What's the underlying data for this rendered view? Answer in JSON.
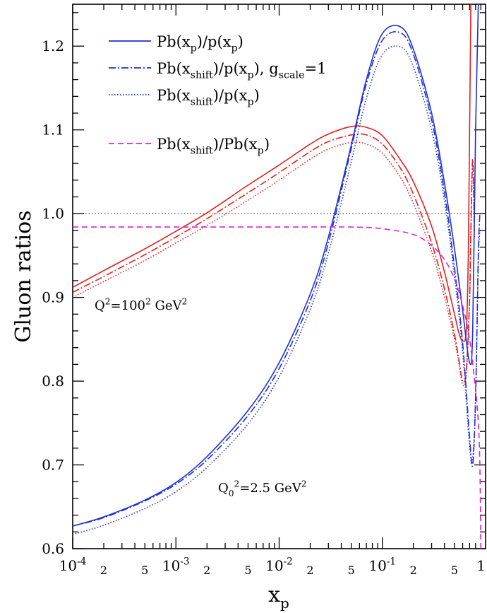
{
  "chart_data": {
    "type": "line",
    "x_scale": "log",
    "xlim": [
      0.0001,
      1
    ],
    "ylim": [
      0.6,
      1.25
    ],
    "xlabel": "x_p",
    "ylabel": "Gluon ratios",
    "x_ticks": [
      {
        "value": 0.0001,
        "base": "10",
        "exp": "-4"
      },
      {
        "value": 0.001,
        "base": "10",
        "exp": "-3"
      },
      {
        "value": 0.01,
        "base": "10",
        "exp": "-2"
      },
      {
        "value": 0.1,
        "base": "10",
        "exp": "-1"
      },
      {
        "value": 1,
        "base": "1",
        "exp": ""
      }
    ],
    "x_minor_labels": [
      {
        "value": 0.0002,
        "label": "2"
      },
      {
        "value": 0.0005,
        "label": "5"
      },
      {
        "value": 0.002,
        "label": "2"
      },
      {
        "value": 0.005,
        "label": "5"
      },
      {
        "value": 0.02,
        "label": "2"
      },
      {
        "value": 0.05,
        "label": "5"
      },
      {
        "value": 0.2,
        "label": "2"
      },
      {
        "value": 0.5,
        "label": "5"
      }
    ],
    "y_ticks": [
      {
        "value": 0.6,
        "label": "0.6"
      },
      {
        "value": 0.7,
        "label": "0.7"
      },
      {
        "value": 0.8,
        "label": "0.8"
      },
      {
        "value": 0.9,
        "label": "0.9"
      },
      {
        "value": 1.0,
        "label": "1.0"
      },
      {
        "value": 1.1,
        "label": "1.1"
      },
      {
        "value": 1.2,
        "label": "1.2"
      }
    ],
    "reference_line": {
      "y": 1.0,
      "style": "dotted",
      "color": "#555555"
    },
    "legend": {
      "placement": "top-right",
      "entries": [
        {
          "style": "solid",
          "color": "#1f2fd6",
          "parts": [
            {
              "t": "Pb(x"
            },
            {
              "t": "p",
              "s": "sub"
            },
            {
              "t": ")/p(x"
            },
            {
              "t": "p",
              "s": "sub"
            },
            {
              "t": ")"
            }
          ]
        },
        {
          "style": "dashdot",
          "color": "#1f2fd6",
          "parts": [
            {
              "t": "Pb(x"
            },
            {
              "t": "shift",
              "s": "sub"
            },
            {
              "t": ")/p(x"
            },
            {
              "t": "p",
              "s": "sub"
            },
            {
              "t": "), g"
            },
            {
              "t": "scale",
              "s": "sub"
            },
            {
              "t": "=1"
            }
          ]
        },
        {
          "style": "dotted",
          "color": "#1f2fd6",
          "parts": [
            {
              "t": "Pb(x"
            },
            {
              "t": "shift",
              "s": "sub"
            },
            {
              "t": ")/p(x"
            },
            {
              "t": "p",
              "s": "sub"
            },
            {
              "t": ")"
            }
          ]
        },
        {
          "style": "dashed",
          "color": "#e020d0",
          "parts": [
            {
              "t": "Pb(x"
            },
            {
              "t": "shift",
              "s": "sub"
            },
            {
              "t": ")/Pb(x"
            },
            {
              "t": "p",
              "s": "sub"
            },
            {
              "t": ")"
            }
          ]
        }
      ]
    },
    "annotations": [
      {
        "id": "q2-high",
        "parts": [
          {
            "t": "Q"
          },
          {
            "t": "2",
            "s": "sup"
          },
          {
            "t": "=100"
          },
          {
            "t": "2",
            "s": "sup"
          },
          {
            "t": " GeV"
          },
          {
            "t": "2",
            "s": "sup"
          }
        ]
      },
      {
        "id": "q0",
        "parts": [
          {
            "t": "Q"
          },
          {
            "t": "0",
            "s": "sub"
          },
          {
            "t": "2",
            "s": "sup"
          },
          {
            "t": "=2.5 GeV"
          },
          {
            "t": "2",
            "s": "sup"
          }
        ]
      }
    ],
    "series": [
      {
        "color": "#e02020",
        "style": "solid",
        "x": [
          0.0001,
          0.0002,
          0.0005,
          0.001,
          0.002,
          0.005,
          0.01,
          0.02,
          0.03,
          0.05,
          0.07,
          0.1,
          0.15,
          0.2,
          0.3,
          0.4,
          0.5,
          0.55,
          0.6,
          0.65,
          0.68,
          0.7,
          0.72
        ],
        "y": [
          0.912,
          0.932,
          0.958,
          0.979,
          1.001,
          1.034,
          1.058,
          1.083,
          1.095,
          1.104,
          1.103,
          1.093,
          1.064,
          1.038,
          0.985,
          0.93,
          0.88,
          0.858,
          0.848,
          0.86,
          0.95,
          1.1,
          1.25
        ]
      },
      {
        "color": "#e02020",
        "style": "dashdot",
        "x": [
          0.0001,
          0.0002,
          0.0005,
          0.001,
          0.002,
          0.005,
          0.01,
          0.02,
          0.03,
          0.05,
          0.07,
          0.1,
          0.15,
          0.2,
          0.3,
          0.4,
          0.5,
          0.55,
          0.6,
          0.65,
          0.7,
          0.72,
          0.75,
          0.78
        ],
        "y": [
          0.906,
          0.925,
          0.951,
          0.972,
          0.994,
          1.025,
          1.049,
          1.074,
          1.086,
          1.094,
          1.094,
          1.083,
          1.054,
          1.023,
          0.965,
          0.91,
          0.856,
          0.826,
          0.8,
          0.812,
          0.9,
          0.98,
          1.065,
          0.98
        ]
      },
      {
        "color": "#e02020",
        "style": "dotted",
        "x": [
          0.0001,
          0.0002,
          0.0005,
          0.001,
          0.002,
          0.005,
          0.01,
          0.02,
          0.03,
          0.05,
          0.07,
          0.1,
          0.15,
          0.2,
          0.3,
          0.4,
          0.5,
          0.55,
          0.6,
          0.65,
          0.7,
          0.72,
          0.75,
          0.78
        ],
        "y": [
          0.9,
          0.919,
          0.944,
          0.965,
          0.986,
          1.016,
          1.04,
          1.065,
          1.077,
          1.085,
          1.083,
          1.072,
          1.043,
          1.012,
          0.955,
          0.9,
          0.85,
          0.822,
          0.796,
          0.808,
          0.895,
          0.975,
          1.06,
          0.97
        ]
      },
      {
        "color": "#1f2fd6",
        "style": "solid",
        "x": [
          0.0001,
          0.0002,
          0.0005,
          0.001,
          0.002,
          0.005,
          0.01,
          0.02,
          0.03,
          0.05,
          0.07,
          0.1,
          0.15,
          0.2,
          0.3,
          0.4,
          0.5,
          0.6,
          0.7,
          0.75,
          0.8,
          0.85
        ],
        "y": [
          0.627,
          0.638,
          0.658,
          0.679,
          0.71,
          0.765,
          0.822,
          0.904,
          0.972,
          1.082,
          1.16,
          1.215,
          1.223,
          1.196,
          1.12,
          1.036,
          0.958,
          0.884,
          0.822,
          0.86,
          1.1,
          1.25
        ]
      },
      {
        "color": "#1f2fd6",
        "style": "dashdot",
        "x": [
          0.0001,
          0.0002,
          0.0005,
          0.001,
          0.002,
          0.005,
          0.01,
          0.02,
          0.03,
          0.05,
          0.07,
          0.1,
          0.15,
          0.2,
          0.3,
          0.4,
          0.5,
          0.6,
          0.7,
          0.75,
          0.8,
          0.85,
          0.88
        ],
        "y": [
          0.627,
          0.637,
          0.657,
          0.677,
          0.706,
          0.759,
          0.815,
          0.896,
          0.965,
          1.078,
          1.155,
          1.207,
          1.216,
          1.19,
          1.112,
          1.025,
          0.935,
          0.845,
          0.733,
          0.7,
          0.78,
          0.95,
          1.0
        ]
      },
      {
        "color": "#1f2fd6",
        "style": "dotted",
        "x": [
          0.0001,
          0.0002,
          0.0005,
          0.001,
          0.002,
          0.005,
          0.01,
          0.02,
          0.03,
          0.05,
          0.07,
          0.1,
          0.15,
          0.2,
          0.3,
          0.4,
          0.5,
          0.6,
          0.7,
          0.75,
          0.8,
          0.85,
          0.88
        ],
        "y": [
          0.617,
          0.628,
          0.648,
          0.668,
          0.697,
          0.749,
          0.805,
          0.886,
          0.953,
          1.062,
          1.138,
          1.19,
          1.199,
          1.175,
          1.1,
          1.015,
          0.925,
          0.835,
          0.722,
          0.708,
          0.78,
          0.94,
          0.98
        ]
      },
      {
        "color": "#e020d0",
        "style": "dashed",
        "x": [
          0.0001,
          0.001,
          0.01,
          0.05,
          0.1,
          0.2,
          0.3,
          0.4,
          0.5,
          0.6,
          0.7,
          0.8,
          0.85,
          0.88,
          0.9
        ],
        "y": [
          0.984,
          0.984,
          0.984,
          0.984,
          0.982,
          0.975,
          0.962,
          0.945,
          0.922,
          0.89,
          0.85,
          0.79,
          0.75,
          0.7,
          0.6
        ]
      }
    ]
  }
}
